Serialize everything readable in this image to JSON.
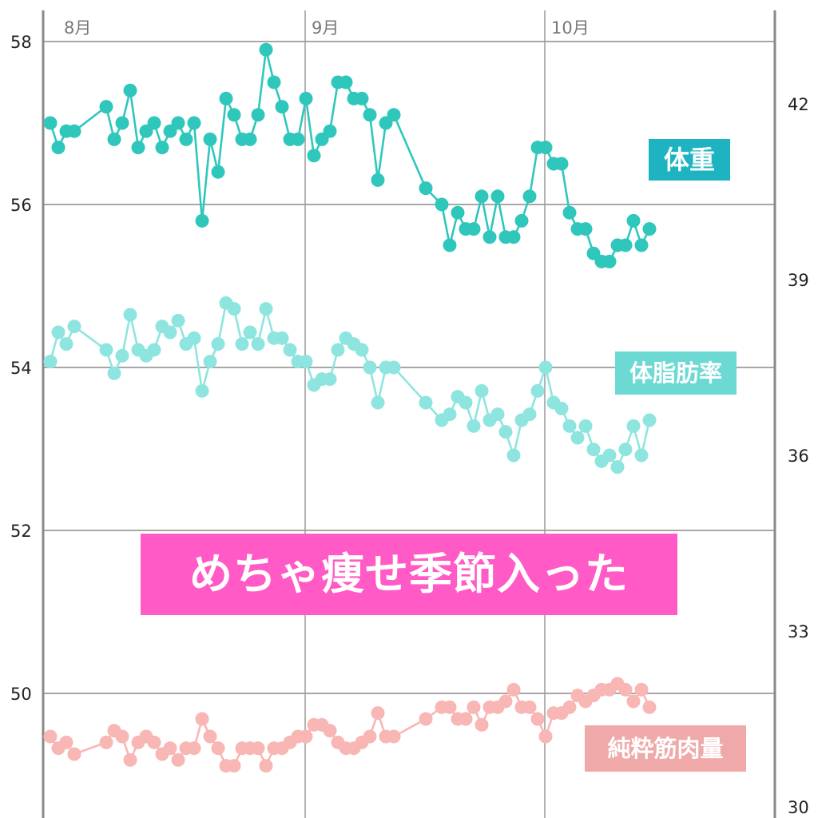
{
  "chart_data": {
    "type": "line",
    "title": "",
    "x_tick_labels": [
      "8月",
      "9月",
      "10月"
    ],
    "y_left": {
      "ticks": [
        "58",
        "56",
        "54",
        "52",
        "50"
      ],
      "range": [
        48.6,
        58.4
      ]
    },
    "y_right": {
      "ticks": [
        "42",
        "39",
        "36",
        "33",
        "30"
      ],
      "range": [
        29.8,
        43.3
      ]
    },
    "grid": true,
    "x": [
      "7/31",
      "8/1",
      "8/2",
      "8/3",
      "8/7",
      "8/8",
      "8/9",
      "8/10",
      "8/11",
      "8/12",
      "8/13",
      "8/14",
      "8/15",
      "8/16",
      "8/17",
      "8/18",
      "8/19",
      "8/20",
      "8/21",
      "8/22",
      "8/23",
      "8/24",
      "8/25",
      "8/26",
      "8/27",
      "8/28",
      "8/29",
      "8/30",
      "8/31",
      "9/1",
      "9/2",
      "9/3",
      "9/4",
      "9/5",
      "9/6",
      "9/7",
      "9/8",
      "9/9",
      "9/10",
      "9/11",
      "9/12",
      "9/16",
      "9/18",
      "9/19",
      "9/20",
      "9/21",
      "9/22",
      "9/23",
      "9/24",
      "9/25",
      "9/26",
      "9/27",
      "9/28",
      "9/29",
      "9/30",
      "10/1",
      "10/2",
      "10/3",
      "10/4",
      "10/5",
      "10/6",
      "10/7",
      "10/8",
      "10/9",
      "10/10",
      "10/11",
      "10/12",
      "10/13",
      "10/14"
    ],
    "series": [
      {
        "name": "体重",
        "axis": "left",
        "color": "#2fc7bc",
        "label_bg": "#1db3c0",
        "values": [
          57.0,
          56.7,
          56.9,
          56.9,
          57.2,
          56.8,
          57.0,
          57.4,
          56.7,
          56.9,
          57.0,
          56.7,
          56.9,
          57.0,
          56.8,
          57.0,
          55.8,
          56.8,
          56.4,
          57.3,
          57.1,
          56.8,
          56.8,
          57.1,
          57.9,
          57.5,
          57.2,
          56.8,
          56.8,
          57.3,
          56.6,
          56.8,
          56.9,
          57.5,
          57.5,
          57.3,
          57.3,
          57.1,
          56.3,
          57.0,
          57.1,
          56.2,
          56.0,
          55.5,
          55.9,
          55.7,
          55.7,
          56.1,
          55.6,
          56.1,
          55.6,
          55.6,
          55.8,
          56.1,
          56.7,
          56.7,
          56.5,
          56.5,
          55.9,
          55.7,
          55.7,
          55.4,
          55.3,
          55.3,
          55.5,
          55.5,
          55.8,
          55.5,
          55.7
        ]
      },
      {
        "name": "体脂肪率",
        "axis": "right",
        "color": "#8ee5df",
        "label_bg": "#6cd9d3",
        "values": [
          37.6,
          38.1,
          37.9,
          38.2,
          37.8,
          37.4,
          37.7,
          38.4,
          37.8,
          37.7,
          37.8,
          38.2,
          38.1,
          38.3,
          37.9,
          38.0,
          37.1,
          37.6,
          37.9,
          38.6,
          38.5,
          37.9,
          38.1,
          37.9,
          38.5,
          38.0,
          38.0,
          37.8,
          37.6,
          37.6,
          37.2,
          37.3,
          37.3,
          37.8,
          38.0,
          37.9,
          37.8,
          37.5,
          36.9,
          37.5,
          37.5,
          36.9,
          36.6,
          36.7,
          37.0,
          36.9,
          36.5,
          37.1,
          36.6,
          36.7,
          36.4,
          36.0,
          36.6,
          36.7,
          37.1,
          37.5,
          36.9,
          36.8,
          36.5,
          36.3,
          36.5,
          36.1,
          35.9,
          36.0,
          35.8,
          36.1,
          36.5,
          36.0,
          36.6
        ]
      },
      {
        "name": "純粋筋肉量",
        "axis": "right",
        "color": "#f8b6b4",
        "label_bg": "#f0a9a9",
        "values": [
          31.2,
          31.0,
          31.1,
          30.9,
          31.1,
          31.3,
          31.2,
          30.8,
          31.1,
          31.2,
          31.1,
          30.9,
          31.0,
          30.8,
          31.0,
          31.0,
          31.5,
          31.2,
          31.0,
          30.7,
          30.7,
          31.0,
          31.0,
          31.0,
          30.7,
          31.0,
          31.0,
          31.1,
          31.2,
          31.2,
          31.4,
          31.4,
          31.3,
          31.1,
          31.0,
          31.0,
          31.1,
          31.2,
          31.6,
          31.2,
          31.2,
          31.5,
          31.7,
          31.7,
          31.5,
          31.5,
          31.7,
          31.4,
          31.7,
          31.7,
          31.8,
          32.0,
          31.7,
          31.7,
          31.5,
          31.2,
          31.6,
          31.6,
          31.7,
          31.9,
          31.8,
          31.9,
          32.0,
          32.0,
          32.1,
          32.0,
          31.8,
          32.0,
          31.7
        ]
      }
    ],
    "annotation": "めちゃ痩せ季節入った",
    "annotation_bg": "#ff5ac6"
  }
}
